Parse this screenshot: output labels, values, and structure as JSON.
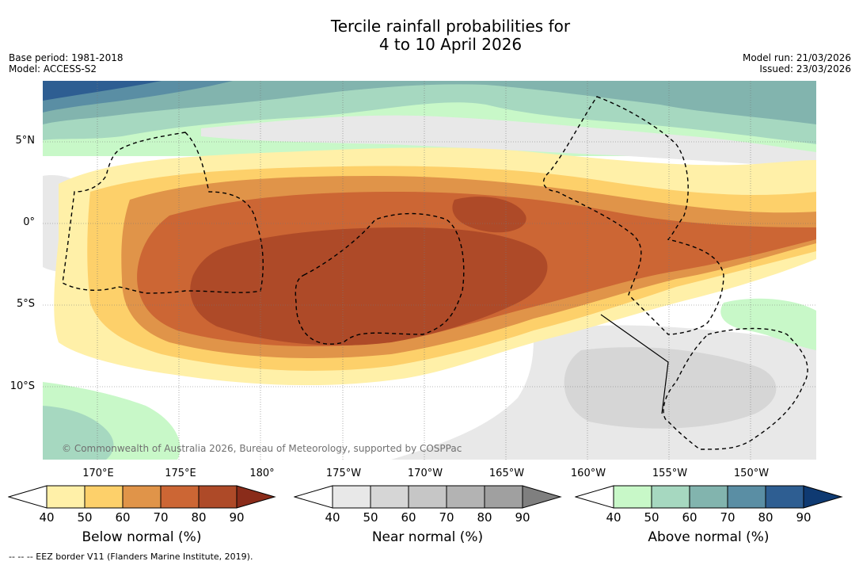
{
  "title": {
    "line1": "Tercile rainfall probabilities for",
    "line2": "4 to 10 April 2026"
  },
  "meta": {
    "base_period": "Base period: 1981-2018",
    "model": "Model: ACCESS-S2",
    "model_run": "Model run: 21/03/2026",
    "issued": "Issued: 23/03/2026"
  },
  "map": {
    "lat_labels": [
      "5°N",
      "0°",
      "5°S",
      "10°S"
    ],
    "lon_labels": [
      "170°E",
      "175°E",
      "180°",
      "175°W",
      "170°W",
      "165°W",
      "160°W",
      "155°W",
      "150°W"
    ],
    "credit": "© Commonwealth of Australia 2026, Bureau of Meteorology, supported by COSPPac"
  },
  "legend": {
    "below": {
      "label": "Below normal (%)",
      "ticks": [
        "40",
        "50",
        "60",
        "70",
        "80",
        "90"
      ],
      "colors": [
        "#fff0a8",
        "#fdd06a",
        "#e09449",
        "#cc6634",
        "#ae4a28",
        "#8a2c1a"
      ]
    },
    "near": {
      "label": "Near normal (%)",
      "ticks": [
        "40",
        "50",
        "60",
        "70",
        "80",
        "90"
      ],
      "colors": [
        "#e8e8e8",
        "#d6d6d6",
        "#c6c6c6",
        "#b3b3b3",
        "#a0a0a0",
        "#7f7f7f"
      ]
    },
    "above": {
      "label": "Above normal (%)",
      "ticks": [
        "40",
        "50",
        "60",
        "70",
        "80",
        "90"
      ],
      "colors": [
        "#c8f8c8",
        "#a6d8c0",
        "#82b4ae",
        "#5a8ea4",
        "#2e5e92",
        "#0f3a72"
      ]
    }
  },
  "footer": {
    "eez": "--  --  -- EEZ border V11 (Flanders Marine Institute, 2019)."
  }
}
